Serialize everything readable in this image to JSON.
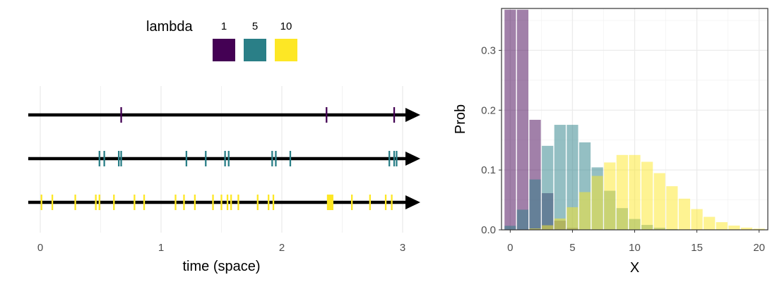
{
  "chart_data": [
    {
      "type": "scatter",
      "subtype": "event-timeline",
      "xlabel": "time (space)",
      "xticks": [
        0,
        1,
        2,
        3
      ],
      "xlim": [
        0,
        3
      ],
      "grid": true,
      "legend": {
        "title": "lambda",
        "position": "top",
        "entries": [
          "1",
          "5",
          "10"
        ]
      },
      "series": [
        {
          "name": "1",
          "color": "#440154",
          "events": [
            0.67,
            2.37,
            2.93
          ]
        },
        {
          "name": "5",
          "color": "#2A7F87",
          "events": [
            0.49,
            0.53,
            0.65,
            0.67,
            1.21,
            1.37,
            1.53,
            1.56,
            1.92,
            1.95,
            2.07,
            2.89,
            2.93,
            2.95
          ]
        },
        {
          "name": "10",
          "color": "#FDE725",
          "events": [
            0.01,
            0.1,
            0.29,
            0.46,
            0.49,
            0.61,
            0.78,
            0.86,
            1.12,
            1.19,
            1.28,
            1.43,
            1.5,
            1.55,
            1.58,
            1.64,
            1.8,
            1.89,
            1.93,
            2.38,
            2.39,
            2.4,
            2.41,
            2.42,
            2.58,
            2.73,
            2.86,
            2.91
          ]
        }
      ]
    },
    {
      "type": "bar",
      "subtype": "overlaid-histogram",
      "xlabel": "X",
      "ylabel": "Prob",
      "xticks": [
        0,
        5,
        10,
        15,
        20
      ],
      "yticks": [
        0.0,
        0.1,
        0.2,
        0.3
      ],
      "xlim": [
        -0.7,
        20.7
      ],
      "ylim": [
        0,
        0.37
      ],
      "grid": true,
      "x": [
        0,
        1,
        2,
        3,
        4,
        5,
        6,
        7,
        8,
        9,
        10,
        11,
        12,
        13,
        14,
        15,
        16,
        17,
        18,
        19,
        20
      ],
      "series": [
        {
          "name": "1",
          "color": "#440154",
          "values": [
            0.3679,
            0.3679,
            0.1839,
            0.0613,
            0.0153,
            0.0031,
            0.0005,
            0.0001,
            0,
            0,
            0,
            0,
            0,
            0,
            0,
            0,
            0,
            0,
            0,
            0,
            0
          ]
        },
        {
          "name": "5",
          "color": "#2A7F87",
          "values": [
            0.0067,
            0.0337,
            0.0842,
            0.1404,
            0.1755,
            0.1755,
            0.1462,
            0.1044,
            0.0653,
            0.0363,
            0.0181,
            0.0082,
            0.0034,
            0.0013,
            0.0005,
            0.0002,
            0,
            0,
            0,
            0,
            0
          ]
        },
        {
          "name": "10",
          "color": "#FDE725",
          "values": [
            0,
            0.0005,
            0.0023,
            0.0076,
            0.0189,
            0.0378,
            0.0631,
            0.0901,
            0.1126,
            0.1251,
            0.1251,
            0.1137,
            0.0948,
            0.0729,
            0.0521,
            0.0347,
            0.0217,
            0.0128,
            0.0071,
            0.0037,
            0.0019
          ]
        }
      ]
    }
  ]
}
